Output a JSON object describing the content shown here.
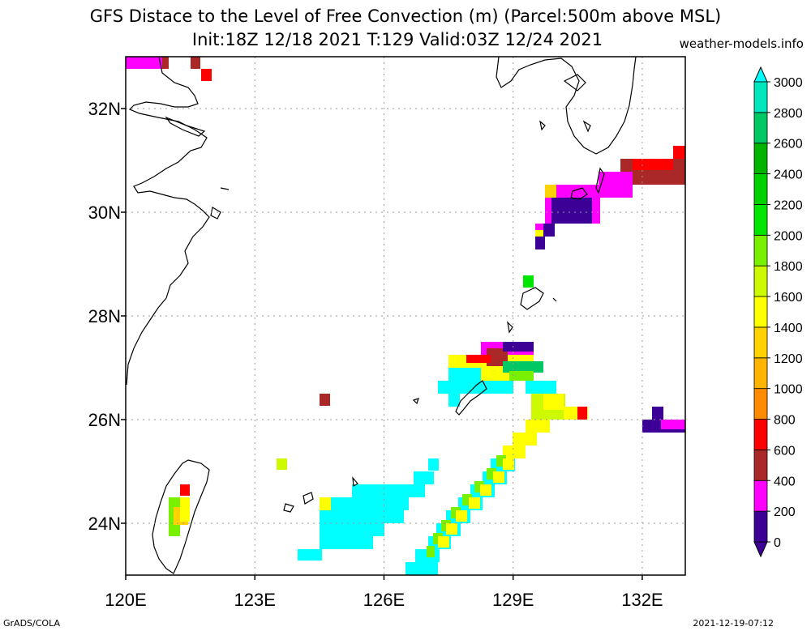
{
  "title_line1": "GFS Distace to the Level of Free Convection (m) (Parcel:500m above MSL)",
  "title_line2": "Init:18Z 12/18 2021 T:129 Valid:03Z 12/24 2021",
  "credit": "weather-models.info",
  "footer_left": "GrADS/COLA",
  "footer_right": "2021-12-19-07:12",
  "map": {
    "lon_range": [
      120,
      133
    ],
    "lat_range": [
      23,
      33
    ],
    "lon_ticks": [
      "120E",
      "123E",
      "126E",
      "129E",
      "132E"
    ],
    "lat_ticks": [
      "24N",
      "26N",
      "28N",
      "30N",
      "32N"
    ]
  },
  "colorbar": {
    "labels": [
      "0",
      "200",
      "400",
      "600",
      "800",
      "1000",
      "1200",
      "1400",
      "1600",
      "1800",
      "2000",
      "2200",
      "2400",
      "2600",
      "2800",
      "3000"
    ],
    "colors": [
      "#3c0096",
      "#ff00ff",
      "#aa2828",
      "#ff0000",
      "#ff8c00",
      "#ffb400",
      "#ffd200",
      "#ffff00",
      "#cdfa00",
      "#78f000",
      "#00e600",
      "#00d200",
      "#00b400",
      "#00c864",
      "#00e6be",
      "#00ffff"
    ]
  }
}
